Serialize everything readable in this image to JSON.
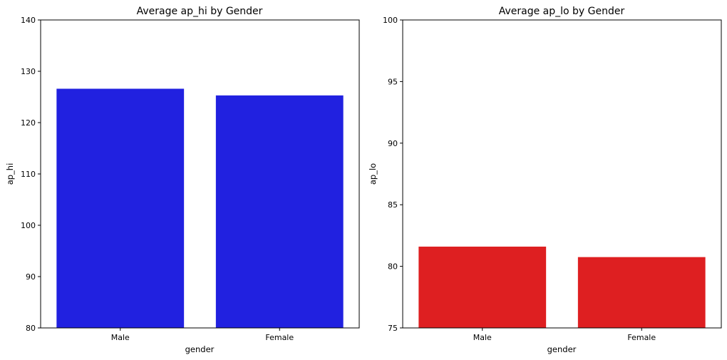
{
  "chart_data": [
    {
      "type": "bar",
      "title": "Average ap_hi by Gender",
      "xlabel": "gender",
      "ylabel": "ap_hi",
      "categories": [
        "Male",
        "Female"
      ],
      "values": [
        126.6,
        125.3
      ],
      "ylim": [
        80,
        140
      ],
      "yticks": [
        80,
        90,
        100,
        110,
        120,
        130,
        140
      ],
      "bar_color": "#2121e0",
      "grid": false
    },
    {
      "type": "bar",
      "title": "Average ap_lo by Gender",
      "xlabel": "gender",
      "ylabel": "ap_lo",
      "categories": [
        "Male",
        "Female"
      ],
      "values": [
        81.6,
        80.75
      ],
      "ylim": [
        75,
        100
      ],
      "yticks": [
        75,
        80,
        85,
        90,
        95,
        100
      ],
      "bar_color": "#de1f21",
      "grid": false
    }
  ]
}
